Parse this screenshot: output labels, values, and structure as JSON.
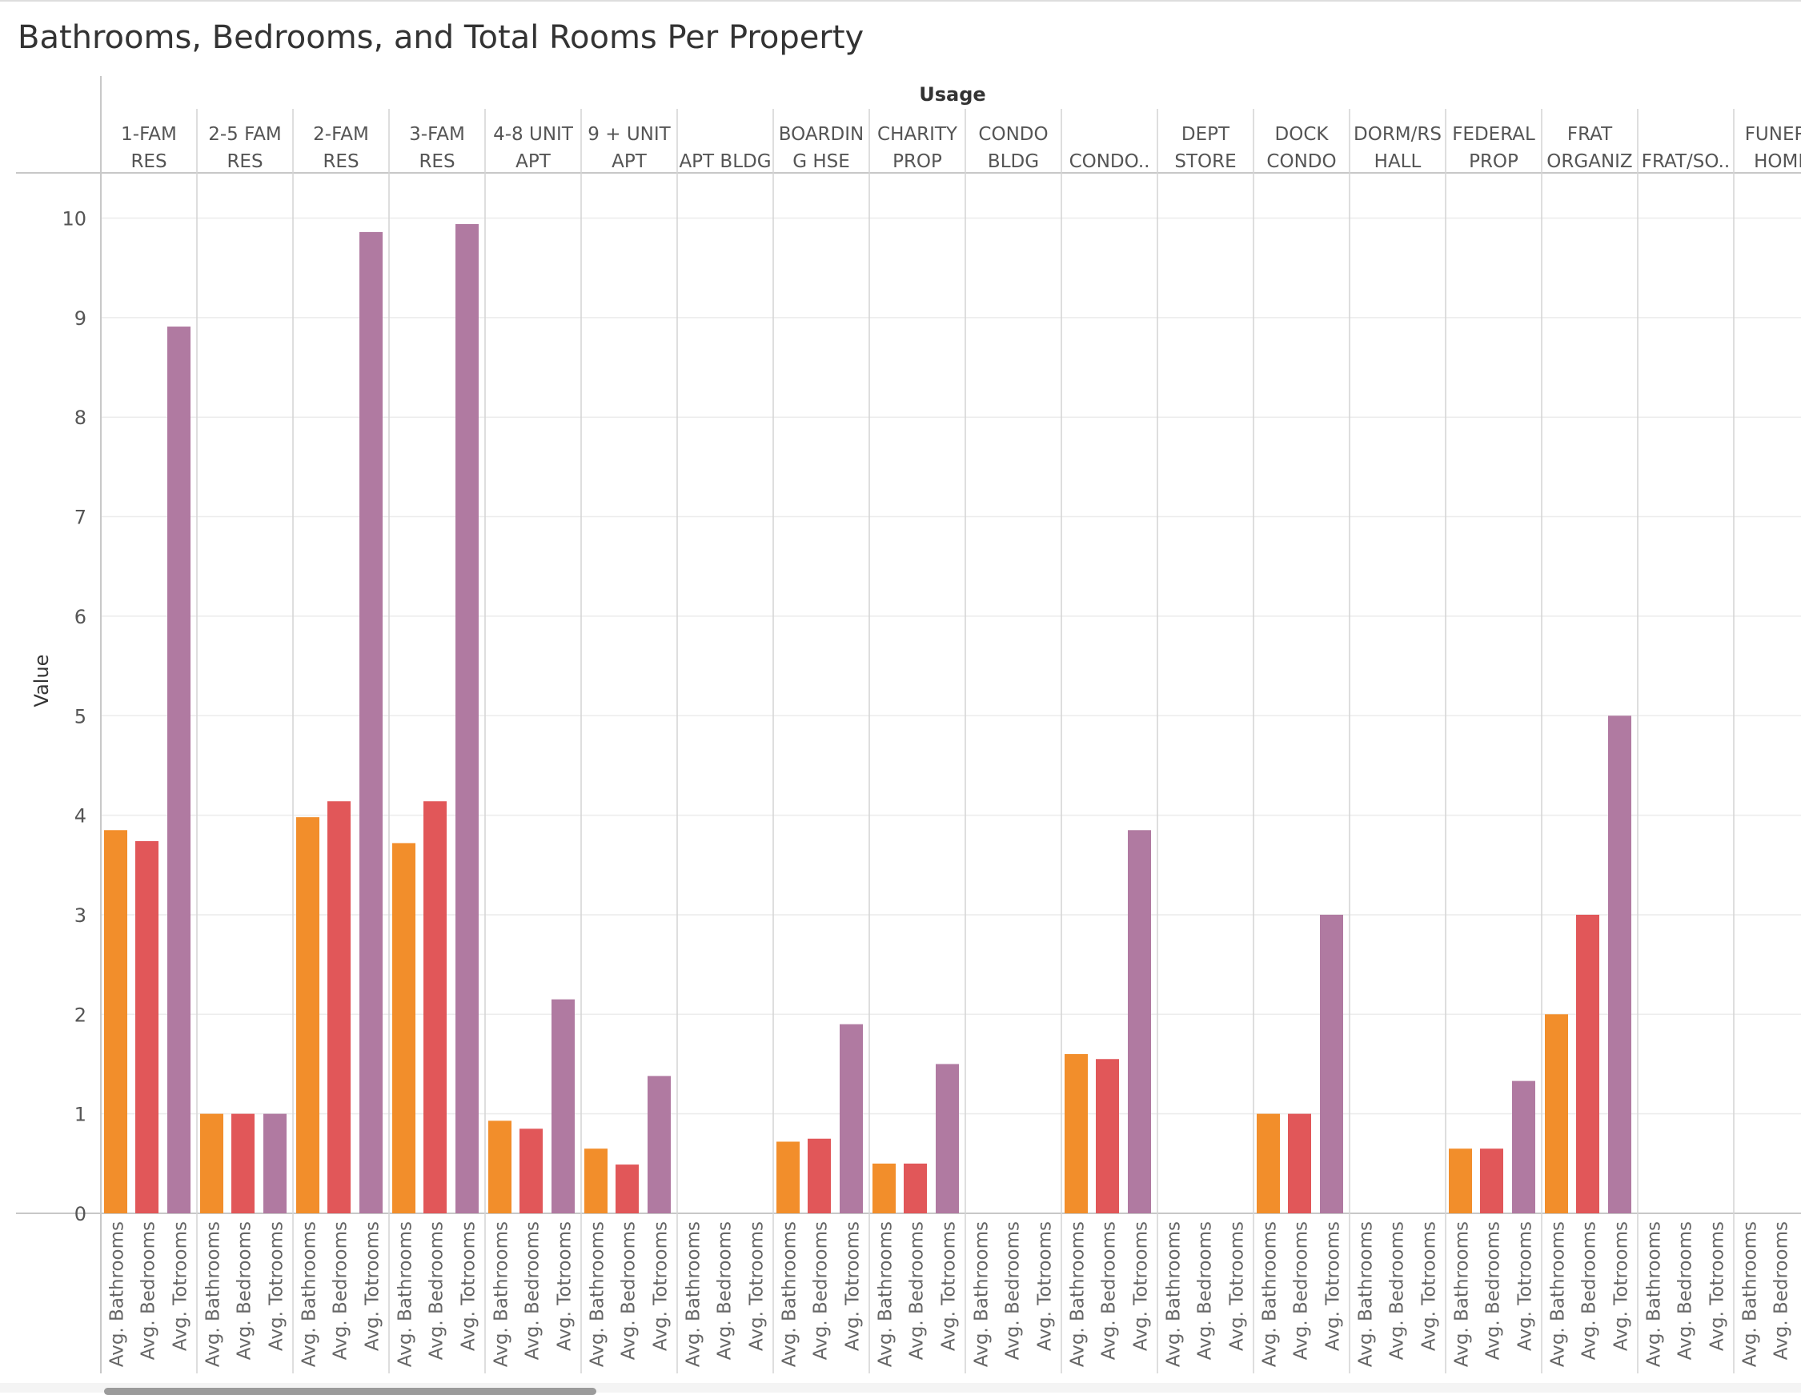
{
  "chart_data": {
    "type": "bar",
    "title": "Bathrooms, Bedrooms, and Total Rooms Per Property",
    "column_header": "Usage",
    "ylabel": "Value",
    "ylim": [
      0,
      10.4
    ],
    "yticks": [
      0,
      1,
      2,
      3,
      4,
      5,
      6,
      7,
      8,
      9,
      10
    ],
    "grid": true,
    "measures": [
      "Avg. Bathrooms",
      "Avg. Bedrooms",
      "Avg. Totrooms"
    ],
    "colors": {
      "Avg. Bathrooms": "#f28e2b",
      "Avg. Bedrooms": "#e15759",
      "Avg. Totrooms": "#b07aa1"
    },
    "categories": [
      {
        "label": [
          "1-FAM",
          "RES"
        ],
        "values": [
          3.85,
          3.74,
          8.91
        ]
      },
      {
        "label": [
          "2-5 FAM",
          "RES"
        ],
        "values": [
          1.0,
          1.0,
          1.0
        ]
      },
      {
        "label": [
          "2-FAM",
          "RES"
        ],
        "values": [
          3.98,
          4.14,
          9.86
        ]
      },
      {
        "label": [
          "3-FAM",
          "RES"
        ],
        "values": [
          3.72,
          4.14,
          9.94
        ]
      },
      {
        "label": [
          "4-8 UNIT",
          "APT"
        ],
        "values": [
          0.93,
          0.85,
          2.15
        ]
      },
      {
        "label": [
          "9 + UNIT",
          "APT"
        ],
        "values": [
          0.65,
          0.49,
          1.38
        ]
      },
      {
        "label": [
          "",
          "APT BLDG"
        ],
        "values": [
          null,
          null,
          null
        ]
      },
      {
        "label": [
          "BOARDIN",
          "G HSE"
        ],
        "values": [
          0.72,
          0.75,
          1.9
        ]
      },
      {
        "label": [
          "CHARITY",
          "PROP"
        ],
        "values": [
          0.5,
          0.5,
          1.5
        ]
      },
      {
        "label": [
          "CONDO",
          "BLDG"
        ],
        "values": [
          null,
          null,
          null
        ]
      },
      {
        "label": [
          "",
          "CONDO.."
        ],
        "values": [
          1.6,
          1.55,
          3.85
        ]
      },
      {
        "label": [
          "DEPT",
          "STORE"
        ],
        "values": [
          null,
          null,
          null
        ]
      },
      {
        "label": [
          "DOCK",
          "CONDO"
        ],
        "values": [
          1.0,
          1.0,
          3.0
        ]
      },
      {
        "label": [
          "DORM/RS",
          "HALL"
        ],
        "values": [
          null,
          null,
          null
        ]
      },
      {
        "label": [
          "FEDERAL",
          "PROP"
        ],
        "values": [
          0.65,
          0.65,
          1.33
        ]
      },
      {
        "label": [
          "FRAT",
          "ORGANIZ"
        ],
        "values": [
          2.0,
          3.0,
          5.0
        ]
      },
      {
        "label": [
          "",
          "FRAT/SO.."
        ],
        "values": [
          null,
          null,
          null
        ]
      },
      {
        "label": [
          "FUNERA",
          "HOME"
        ],
        "values": [
          null,
          null,
          null
        ]
      }
    ]
  }
}
